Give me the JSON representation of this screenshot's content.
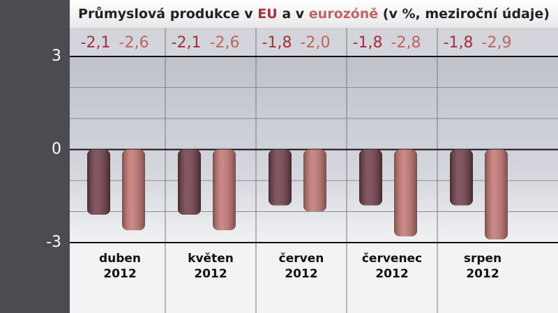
{
  "chart_data": {
    "type": "bar",
    "title_parts": [
      "Průmyslová produkce v",
      "a v",
      "(v %, meziroční údaje)"
    ],
    "categories": [
      [
        "duben",
        "2012"
      ],
      [
        "květen",
        "2012"
      ],
      [
        "červen",
        "2012"
      ],
      [
        "červenec",
        "2012"
      ],
      [
        "srpen",
        "2012"
      ]
    ],
    "series": [
      {
        "name": "EU",
        "color": "#6e3a46",
        "label_color": "#a3303a",
        "values": [
          -2.1,
          -2.1,
          -1.8,
          -1.8,
          -1.8
        ],
        "value_labels": [
          "-2,1",
          "-2,1",
          "-1,8",
          "-1,8",
          "-1,8"
        ]
      },
      {
        "name": "eurozóně",
        "color": "#c27470",
        "label_color": "#c06462",
        "values": [
          -2.6,
          -2.6,
          -2.0,
          -2.8,
          -2.9
        ],
        "value_labels": [
          "-2,6",
          "-2,6",
          "-2,0",
          "-2,8",
          "-2,9"
        ]
      }
    ],
    "ylim": [
      -3,
      3
    ],
    "yticks": [
      3,
      0,
      -3
    ],
    "minor_yticks": [
      2,
      1,
      -1,
      -2
    ],
    "grid": true
  }
}
